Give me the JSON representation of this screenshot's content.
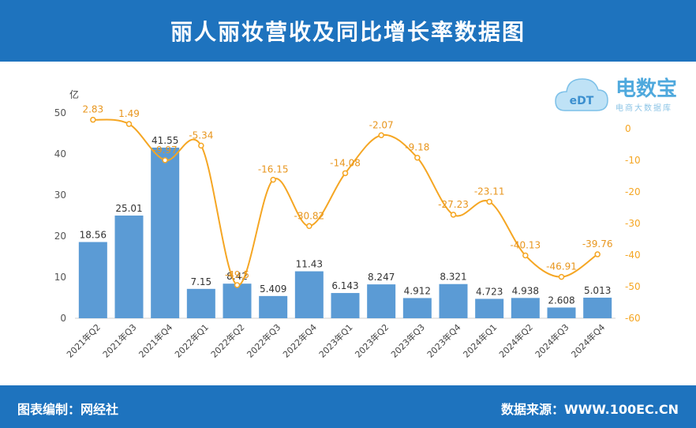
{
  "header": {
    "title": "丽人丽妆营收及同比增长率数据图"
  },
  "footer": {
    "left": "图表编制：网经社",
    "right": "数据来源：WWW.100EC.CN"
  },
  "logo": {
    "brand": "电数宝",
    "sub": "电商大数据库",
    "mark": "eDT"
  },
  "colors": {
    "bar": "#5b9bd5",
    "line": "#f5a623",
    "header": "#1e73be"
  },
  "chart_data": {
    "type": "bar+line",
    "title": "丽人丽妆营收及同比增长率数据图",
    "left_axis_unit": "亿",
    "left_ylim": [
      0,
      50
    ],
    "left_ticks": [
      0,
      10,
      20,
      30,
      40,
      50
    ],
    "right_ylim": [
      -60,
      5
    ],
    "right_ticks": [
      0,
      -10,
      -20,
      -30,
      -40,
      -50,
      -60
    ],
    "categories": [
      "2021年Q2",
      "2021年Q3",
      "2021年Q4",
      "2022年Q1",
      "2022年Q2",
      "2022年Q3",
      "2022年Q4",
      "2023年Q1",
      "2023年Q2",
      "2023年Q3",
      "2023年Q4",
      "2024年Q1",
      "2024年Q2",
      "2024年Q3",
      "2024年Q4"
    ],
    "series": [
      {
        "name": "营收",
        "axis": "left",
        "type": "bar",
        "values": [
          18.56,
          25.01,
          41.55,
          7.15,
          8.42,
          5.409,
          11.43,
          6.143,
          8.247,
          4.912,
          8.321,
          4.723,
          4.938,
          2.608,
          5.013
        ],
        "labels": [
          "18.56",
          "25.01",
          "41.55",
          "7.15",
          "8.42",
          "5.409",
          "11.43",
          "6.143",
          "8.247",
          "4.912",
          "8.321",
          "4.723",
          "4.938",
          "2.608",
          "5.013"
        ]
      },
      {
        "name": "同比增长率",
        "axis": "right",
        "type": "line",
        "values": [
          2.83,
          1.49,
          -9.97,
          -5.34,
          -49.5,
          -16.15,
          -30.82,
          -14.08,
          -2.07,
          -9.18,
          -27.23,
          -23.11,
          -40.13,
          -46.91,
          -39.76
        ],
        "labels": [
          "2.83",
          "1.49",
          "-9.97",
          "-5.34",
          "-49.5",
          "-16.15",
          "-30.82",
          "-14.08",
          "-2.07",
          "-9.18",
          "-27.23",
          "-23.11",
          "-40.13",
          "-46.91",
          "-39.76"
        ]
      }
    ]
  }
}
